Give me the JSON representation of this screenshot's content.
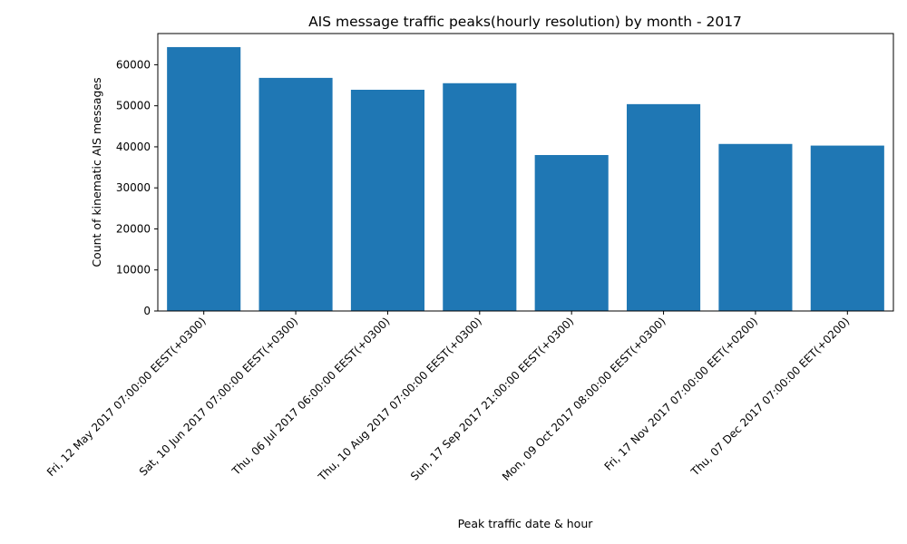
{
  "chart_data": {
    "type": "bar",
    "title": "AIS message traffic peaks(hourly resolution) by month - 2017",
    "xlabel": "Peak traffic date & hour",
    "ylabel": "Count of kinematic AIS messages",
    "categories": [
      "Fri, 12 May 2017 07:00:00 EEST(+0300)",
      "Sat, 10 Jun 2017 07:00:00 EEST(+0300)",
      "Thu, 06 Jul 2017 06:00:00 EEST(+0300)",
      "Thu, 10 Aug 2017 07:00:00 EEST(+0300)",
      "Sun, 17 Sep 2017 21:00:00 EEST(+0300)",
      "Mon, 09 Oct 2017 08:00:00 EEST(+0300)",
      "Fri, 17 Nov 2017 07:00:00 EET(+0200)",
      "Thu, 07 Dec 2017 07:00:00 EET(+0200)"
    ],
    "values": [
      64300,
      56800,
      53900,
      55500,
      38000,
      50400,
      40700,
      40300
    ],
    "ylim": [
      0,
      67600
    ],
    "yticks": [
      0,
      10000,
      20000,
      30000,
      40000,
      50000,
      60000
    ],
    "bar_color": "#1f77b4",
    "grid": false,
    "legend": "none"
  }
}
